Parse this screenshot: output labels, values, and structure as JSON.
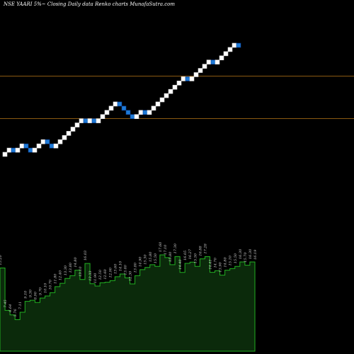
{
  "chart_data": {
    "type": "renko",
    "title": "NSE YAARI 5%~  Closing Daily data  Renko  charts MunafaSutra.com",
    "series": [
      {
        "values": [
          1,
          1,
          0,
          1,
          1,
          0,
          0,
          1,
          1,
          1,
          0,
          0,
          1,
          1,
          1,
          1,
          1,
          1,
          1,
          0,
          1,
          0,
          1,
          1,
          1,
          1,
          1,
          0,
          0,
          0,
          0,
          1,
          1,
          0,
          1,
          1,
          1,
          1,
          1,
          1,
          1,
          1,
          1,
          0,
          1,
          1,
          1,
          1,
          1,
          0,
          1,
          1,
          1,
          1,
          1,
          0
        ]
      }
    ],
    "volume": {
      "values": [
        15.2,
        7.45,
        6.64,
        5.76,
        7.11,
        9.1,
        9.3,
        8.9,
        9.7,
        10.1,
        10.7,
        11.8,
        12.4,
        13.3,
        13.8,
        14.8,
        13.1,
        16.03,
        12.33,
        11.9,
        12.5,
        12.6,
        12.9,
        13.6,
        14.1,
        13.4,
        12.3,
        13.8,
        14.9,
        15.3,
        15.8,
        15.5,
        17.6,
        17.1,
        15.8,
        17.3,
        14.4,
        16.05,
        16.27,
        15.5,
        16.88,
        17.28,
        14.41,
        14.7,
        13.9,
        14.8,
        15.1,
        15.5,
        16.3,
        15.7,
        16.3,
        16.19
      ],
      "labels": [
        "15.20",
        "7.45",
        "6.64",
        "5.76",
        "7.11",
        "9.10",
        "9.30",
        "8.90",
        "9.70",
        "10.10",
        "10.70",
        "11.80",
        "12.40",
        "13.30",
        "13.80",
        "14.80",
        "13.10",
        "16.03",
        "12.33",
        "11.90",
        "12.50",
        "12.60",
        "12.90",
        "13.60",
        "14.10",
        "13.40",
        "12.30",
        "13.80",
        "14.90",
        "15.30",
        "15.80",
        "15.50",
        "17.60",
        "17.10",
        "15.80",
        "17.30",
        "14.40",
        "16.05",
        "16.27",
        "15.50",
        "16.88",
        "17.28",
        "14.41",
        "14.70",
        "13.90",
        "14.80",
        "15.10",
        "15.50",
        "16.30",
        "15.70",
        "16.30",
        "16.19"
      ]
    }
  },
  "colors": {
    "up_brick": "#ffffff",
    "down_brick": "#1e7ad6",
    "down_brick_border": "#0b3d91",
    "reference_line": "#8b5a12",
    "volume_fill": "#0b2a0b",
    "volume_line": "#22b022",
    "volume_label": "#cccccc",
    "background": "#000000",
    "title_text": "#ffffff"
  }
}
